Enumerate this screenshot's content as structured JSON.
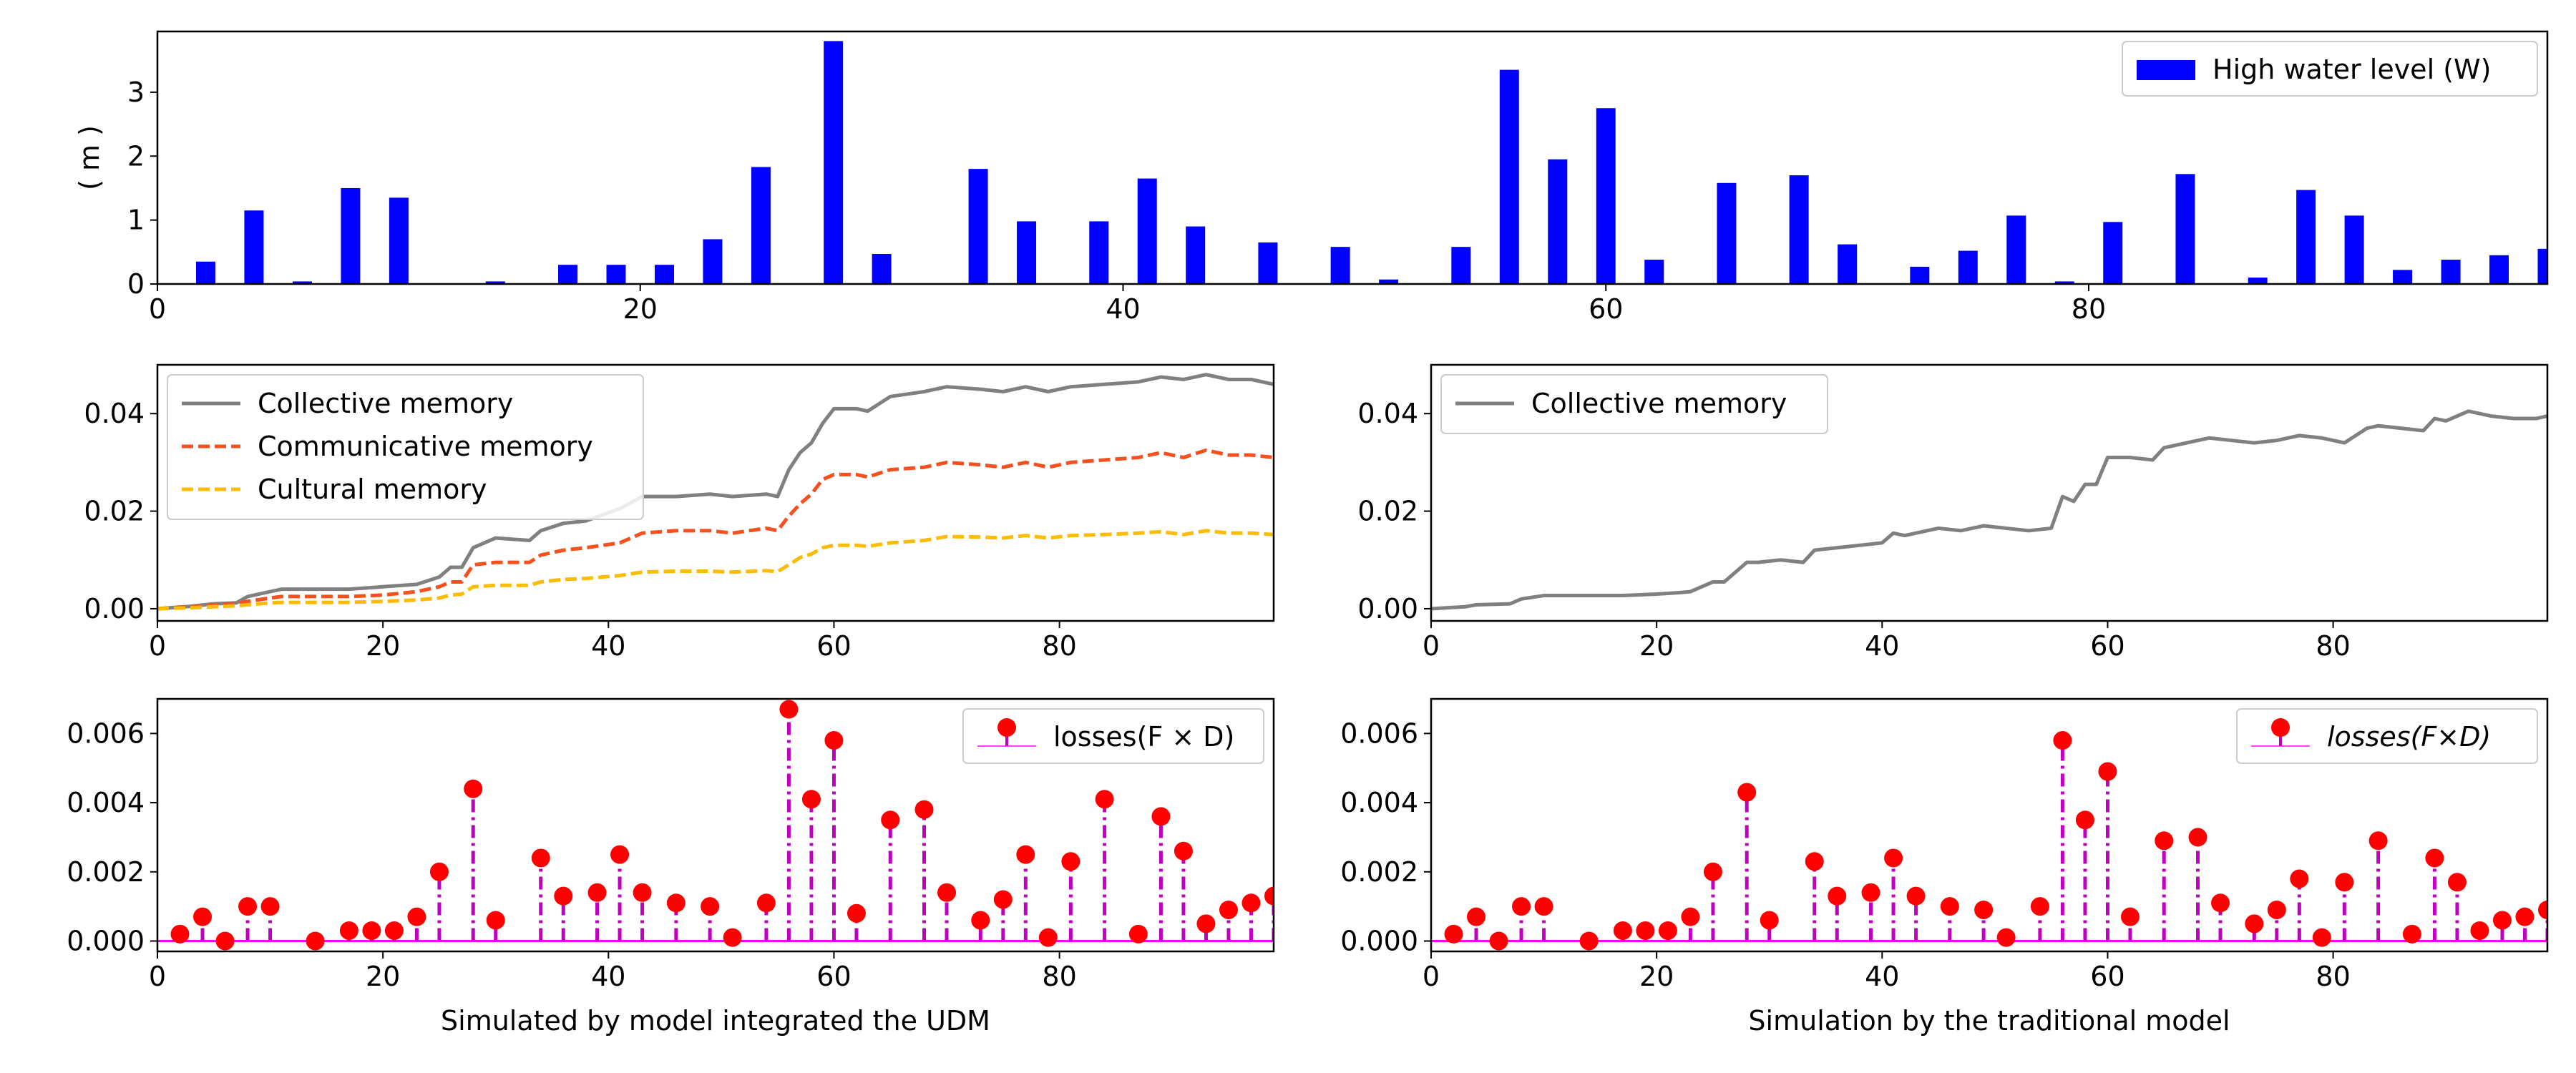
{
  "colors": {
    "bar": "#0000ff",
    "collective": "#808080",
    "communicative": "#f4511e",
    "cultural": "#fbbc05",
    "stem": "#bf00bf",
    "marker": "#ff0000",
    "baseline": "#ff00ff"
  },
  "chart_data": [
    {
      "id": "water",
      "type": "bar",
      "ylabel": "( m )",
      "xlim": [
        0,
        99
      ],
      "ylim": [
        0,
        3.95
      ],
      "xticks": [
        0,
        20,
        40,
        60,
        80
      ],
      "xtick_labels": [
        "0",
        "20",
        "40",
        "60",
        "80"
      ],
      "yticks": [
        0,
        1,
        2,
        3
      ],
      "ytick_labels": [
        "0",
        "1",
        "2",
        "3"
      ],
      "legend_position": "top-right",
      "series": [
        {
          "name": "High water level (W)",
          "x": [
            2,
            4,
            6,
            8,
            10,
            14,
            17,
            19,
            21,
            23,
            25,
            28,
            30,
            34,
            36,
            39,
            41,
            43,
            46,
            49,
            51,
            54,
            56,
            58,
            60,
            62,
            65,
            68,
            70,
            73,
            75,
            77,
            79,
            81,
            84,
            87,
            89,
            91,
            93,
            95,
            97,
            99
          ],
          "values": [
            0.35,
            1.15,
            0.04,
            1.5,
            1.35,
            0.04,
            0.3,
            0.3,
            0.3,
            0.7,
            1.83,
            3.8,
            0.47,
            1.8,
            0.98,
            0.98,
            1.65,
            0.9,
            0.65,
            0.58,
            0.07,
            0.58,
            3.35,
            1.95,
            2.75,
            0.38,
            1.58,
            1.7,
            0.62,
            0.27,
            0.52,
            1.07,
            0.04,
            0.97,
            1.72,
            0.1,
            1.47,
            1.07,
            0.22,
            0.38,
            0.45,
            0.55
          ]
        }
      ]
    },
    {
      "id": "memory_udm",
      "type": "line",
      "xlim": [
        0,
        99
      ],
      "ylim": [
        -0.0025,
        0.05
      ],
      "xticks": [
        0,
        20,
        40,
        60,
        80
      ],
      "xtick_labels": [
        "0",
        "20",
        "40",
        "60",
        "80"
      ],
      "yticks": [
        0,
        0.02,
        0.04
      ],
      "ytick_labels": [
        "0.00",
        "0.02",
        "0.04"
      ],
      "legend_position": "top-left",
      "series": [
        {
          "name": "Collective memory",
          "x": [
            0,
            3,
            5,
            7,
            8,
            10,
            11,
            14,
            17,
            20,
            23,
            25,
            26,
            27,
            28,
            30,
            33,
            34,
            36,
            38,
            41,
            43,
            46,
            49,
            51,
            54,
            55,
            56,
            57,
            58,
            59,
            60,
            62,
            63,
            65,
            68,
            70,
            73,
            75,
            77,
            79,
            81,
            84,
            87,
            89,
            91,
            93,
            95,
            97,
            99
          ],
          "values": [
            0.0,
            0.0005,
            0.001,
            0.0012,
            0.0025,
            0.0035,
            0.004,
            0.004,
            0.004,
            0.0045,
            0.005,
            0.0065,
            0.0085,
            0.0085,
            0.0125,
            0.0145,
            0.014,
            0.016,
            0.0175,
            0.018,
            0.0205,
            0.023,
            0.023,
            0.0235,
            0.023,
            0.0235,
            0.023,
            0.0285,
            0.032,
            0.034,
            0.038,
            0.041,
            0.041,
            0.0405,
            0.0435,
            0.0445,
            0.0455,
            0.045,
            0.0445,
            0.0455,
            0.0445,
            0.0455,
            0.046,
            0.0465,
            0.0475,
            0.047,
            0.048,
            0.047,
            0.047,
            0.046
          ]
        },
        {
          "name": "Communicative memory",
          "x": [
            0,
            3,
            5,
            7,
            8,
            10,
            11,
            14,
            17,
            20,
            23,
            25,
            26,
            27,
            28,
            30,
            33,
            34,
            36,
            38,
            41,
            43,
            46,
            49,
            51,
            54,
            55,
            56,
            57,
            58,
            59,
            60,
            62,
            63,
            65,
            68,
            70,
            73,
            75,
            77,
            79,
            81,
            84,
            87,
            89,
            91,
            93,
            95,
            97,
            99
          ],
          "values": [
            0.0,
            0.0004,
            0.0008,
            0.001,
            0.0015,
            0.0022,
            0.0025,
            0.0025,
            0.0025,
            0.0028,
            0.0035,
            0.0045,
            0.0055,
            0.0055,
            0.009,
            0.0095,
            0.0095,
            0.011,
            0.012,
            0.0125,
            0.0135,
            0.0155,
            0.016,
            0.016,
            0.0155,
            0.0165,
            0.016,
            0.019,
            0.0215,
            0.0235,
            0.0265,
            0.0275,
            0.0275,
            0.027,
            0.0285,
            0.029,
            0.03,
            0.0295,
            0.029,
            0.03,
            0.029,
            0.03,
            0.0305,
            0.031,
            0.032,
            0.031,
            0.0325,
            0.0315,
            0.0315,
            0.031
          ]
        },
        {
          "name": "Cultural memory",
          "x": [
            0,
            3,
            5,
            7,
            8,
            10,
            11,
            14,
            17,
            20,
            23,
            25,
            26,
            27,
            28,
            30,
            33,
            34,
            36,
            38,
            41,
            43,
            46,
            49,
            51,
            54,
            55,
            56,
            57,
            58,
            59,
            60,
            62,
            63,
            65,
            68,
            70,
            73,
            75,
            77,
            79,
            81,
            84,
            87,
            89,
            91,
            93,
            95,
            97,
            99
          ],
          "values": [
            0.0,
            0.0002,
            0.0004,
            0.0006,
            0.0008,
            0.0012,
            0.0013,
            0.0013,
            0.0013,
            0.0015,
            0.0018,
            0.0022,
            0.0028,
            0.003,
            0.0045,
            0.0048,
            0.0048,
            0.0055,
            0.006,
            0.0062,
            0.0068,
            0.0075,
            0.0077,
            0.0077,
            0.0075,
            0.0078,
            0.0076,
            0.009,
            0.0105,
            0.0112,
            0.0125,
            0.013,
            0.013,
            0.0128,
            0.0135,
            0.014,
            0.0148,
            0.0147,
            0.0145,
            0.015,
            0.0145,
            0.015,
            0.0152,
            0.0155,
            0.0158,
            0.0152,
            0.016,
            0.0155,
            0.0155,
            0.0152
          ]
        }
      ]
    },
    {
      "id": "memory_traditional",
      "type": "line",
      "xlim": [
        0,
        99
      ],
      "ylim": [
        -0.0025,
        0.05
      ],
      "xticks": [
        0,
        20,
        40,
        60,
        80
      ],
      "xtick_labels": [
        "0",
        "20",
        "40",
        "60",
        "80"
      ],
      "yticks": [
        0,
        0.02,
        0.04
      ],
      "ytick_labels": [
        "0.00",
        "0.02",
        "0.04"
      ],
      "legend_position": "top-left",
      "series": [
        {
          "name": "Collective memory",
          "x": [
            0,
            3,
            4,
            7,
            8,
            10,
            14,
            17,
            20,
            22,
            23,
            25,
            26,
            28,
            29,
            31,
            33,
            34,
            36,
            38,
            40,
            41,
            42,
            44,
            45,
            47,
            49,
            51,
            53,
            55,
            56,
            57,
            58,
            59,
            60,
            62,
            64,
            65,
            67,
            69,
            71,
            73,
            75,
            77,
            79,
            81,
            83,
            84,
            86,
            88,
            89,
            90,
            92,
            94,
            96,
            98,
            99
          ],
          "values": [
            0.0,
            0.0004,
            0.0008,
            0.001,
            0.002,
            0.0027,
            0.0027,
            0.0027,
            0.003,
            0.0033,
            0.0035,
            0.0055,
            0.0055,
            0.0095,
            0.0095,
            0.01,
            0.0095,
            0.012,
            0.0125,
            0.013,
            0.0135,
            0.0155,
            0.015,
            0.016,
            0.0165,
            0.016,
            0.017,
            0.0165,
            0.016,
            0.0165,
            0.023,
            0.022,
            0.0255,
            0.0255,
            0.031,
            0.031,
            0.0305,
            0.033,
            0.034,
            0.035,
            0.0345,
            0.034,
            0.0345,
            0.0355,
            0.035,
            0.034,
            0.037,
            0.0375,
            0.037,
            0.0365,
            0.039,
            0.0385,
            0.0405,
            0.0395,
            0.039,
            0.039,
            0.0395
          ]
        }
      ]
    },
    {
      "id": "losses_udm",
      "type": "stem",
      "xlabel": "Simulated by model integrated the UDM",
      "xlim": [
        0,
        99
      ],
      "ylim": [
        -0.0003,
        0.007
      ],
      "xticks": [
        0,
        20,
        40,
        60,
        80
      ],
      "xtick_labels": [
        "0",
        "20",
        "40",
        "60",
        "80"
      ],
      "yticks": [
        0,
        0.002,
        0.004,
        0.006
      ],
      "ytick_labels": [
        "0.000",
        "0.002",
        "0.004",
        "0.006"
      ],
      "legend_position": "top-right",
      "legend_italic": false,
      "series": [
        {
          "name": "losses(F × D)",
          "x": [
            2,
            4,
            6,
            8,
            10,
            14,
            17,
            19,
            21,
            23,
            25,
            28,
            30,
            34,
            36,
            39,
            41,
            43,
            46,
            49,
            51,
            54,
            56,
            58,
            60,
            62,
            65,
            68,
            70,
            73,
            75,
            77,
            79,
            81,
            84,
            87,
            89,
            91,
            93,
            95,
            97,
            99
          ],
          "values": [
            0.0002,
            0.0007,
            0.0,
            0.001,
            0.001,
            0.0,
            0.0003,
            0.0003,
            0.0003,
            0.0007,
            0.002,
            0.0044,
            0.0006,
            0.0024,
            0.0013,
            0.0014,
            0.0025,
            0.0014,
            0.0011,
            0.001,
            0.0001,
            0.0011,
            0.0067,
            0.0041,
            0.0058,
            0.0008,
            0.0035,
            0.0038,
            0.0014,
            0.0006,
            0.0012,
            0.0025,
            0.0001,
            0.0023,
            0.0041,
            0.0002,
            0.0036,
            0.0026,
            0.0005,
            0.0009,
            0.0011,
            0.0013
          ]
        }
      ]
    },
    {
      "id": "losses_traditional",
      "type": "stem",
      "xlabel": "Simulation by the traditional model",
      "xlim": [
        0,
        99
      ],
      "ylim": [
        -0.0003,
        0.007
      ],
      "xticks": [
        0,
        20,
        40,
        60,
        80
      ],
      "xtick_labels": [
        "0",
        "20",
        "40",
        "60",
        "80"
      ],
      "yticks": [
        0,
        0.002,
        0.004,
        0.006
      ],
      "ytick_labels": [
        "0.000",
        "0.002",
        "0.004",
        "0.006"
      ],
      "legend_position": "top-right",
      "legend_italic": true,
      "series": [
        {
          "name": "losses(F×D)",
          "x": [
            2,
            4,
            6,
            8,
            10,
            14,
            17,
            19,
            21,
            23,
            25,
            28,
            30,
            34,
            36,
            39,
            41,
            43,
            46,
            49,
            51,
            54,
            56,
            58,
            60,
            62,
            65,
            68,
            70,
            73,
            75,
            77,
            79,
            81,
            84,
            87,
            89,
            91,
            93,
            95,
            97,
            99
          ],
          "values": [
            0.0002,
            0.0007,
            0.0,
            0.001,
            0.001,
            0.0,
            0.0003,
            0.0003,
            0.0003,
            0.0007,
            0.002,
            0.0043,
            0.0006,
            0.0023,
            0.0013,
            0.0014,
            0.0024,
            0.0013,
            0.001,
            0.0009,
            0.0001,
            0.001,
            0.0058,
            0.0035,
            0.0049,
            0.0007,
            0.0029,
            0.003,
            0.0011,
            0.0005,
            0.0009,
            0.0018,
            0.0001,
            0.0017,
            0.0029,
            0.0002,
            0.0024,
            0.0017,
            0.0003,
            0.0006,
            0.0007,
            0.0009
          ]
        }
      ]
    }
  ]
}
